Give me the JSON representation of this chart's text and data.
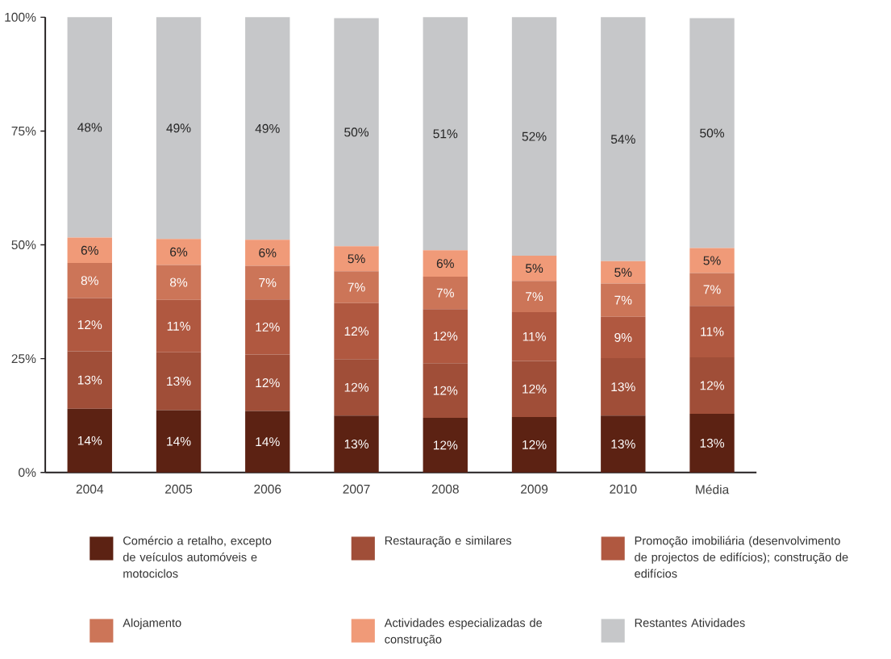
{
  "chart_data": {
    "type": "bar",
    "stacked": true,
    "categories": [
      "2004",
      "2005",
      "2006",
      "2007",
      "2008",
      "2009",
      "2010",
      "Média"
    ],
    "series": [
      {
        "name": "Comércio a retalho, excepto de veículos automóveis e motociclos",
        "color": "#5c2213",
        "values": [
          14.0,
          13.7,
          13.5,
          12.5,
          12.0,
          12.2,
          12.5,
          12.9
        ],
        "value_labels": [
          "14%",
          "14%",
          "14%",
          "13%",
          "12%",
          "12%",
          "13%",
          "13%"
        ]
      },
      {
        "name": "Restauração e similares",
        "color": "#a04e38",
        "values": [
          12.6,
          12.7,
          12.4,
          12.4,
          12.0,
          12.3,
          12.6,
          12.4
        ],
        "value_labels": [
          "13%",
          "13%",
          "12%",
          "12%",
          "12%",
          "12%",
          "13%",
          "12%"
        ]
      },
      {
        "name": "Promoção imobiliária (desenvolvimento de projectos de edifícios); construção de edifícios",
        "color": "#b05840",
        "values": [
          11.7,
          11.5,
          12.1,
          12.3,
          11.9,
          10.7,
          9.1,
          11.3
        ],
        "value_labels": [
          "12%",
          "11%",
          "12%",
          "12%",
          "12%",
          "11%",
          "9%",
          "11%"
        ]
      },
      {
        "name": "Alojamento",
        "color": "#cc7558",
        "values": [
          7.7,
          7.7,
          7.4,
          7.0,
          7.1,
          6.9,
          7.3,
          7.2
        ],
        "value_labels": [
          "8%",
          "8%",
          "7%",
          "7%",
          "7%",
          "7%",
          "7%",
          "7%"
        ]
      },
      {
        "name": "Actividades especializadas de construção",
        "color": "#f09a78",
        "values": [
          5.6,
          5.7,
          5.7,
          5.5,
          5.8,
          5.5,
          4.9,
          5.5
        ],
        "value_labels": [
          "6%",
          "6%",
          "6%",
          "5%",
          "6%",
          "5%",
          "5%",
          "5%"
        ]
      },
      {
        "name": "Restantes Atividades",
        "color": "#c6c7c9",
        "values": [
          48.4,
          48.7,
          48.9,
          50.1,
          51.2,
          52.4,
          53.6,
          50.5
        ],
        "value_labels": [
          "48%",
          "49%",
          "49%",
          "50%",
          "51%",
          "52%",
          "54%",
          "50%"
        ]
      }
    ],
    "ylim": [
      0,
      100
    ],
    "yticks": [
      {
        "value": 0,
        "label": "0%"
      },
      {
        "value": 25,
        "label": "25%"
      },
      {
        "value": 50,
        "label": "50%"
      },
      {
        "value": 75,
        "label": "75%"
      },
      {
        "value": 100,
        "label": "100%"
      }
    ],
    "grid": false,
    "legend": "bottom"
  }
}
